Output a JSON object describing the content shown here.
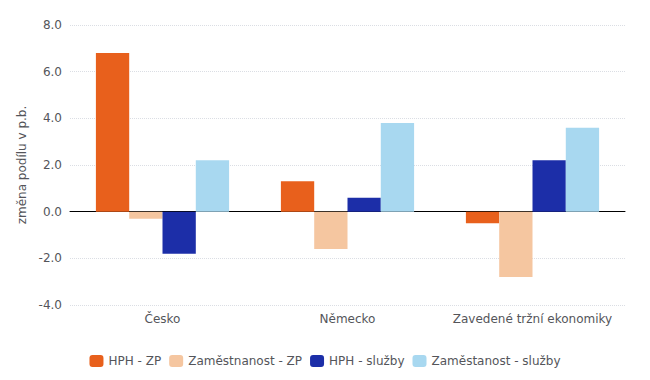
{
  "chart_data": {
    "type": "bar",
    "ylabel": "změna podílu v p.b.",
    "categories": [
      "Česko",
      "Německo",
      "Zavedené tržní ekonomiky"
    ],
    "series": [
      {
        "name": "HPH - ZP",
        "color": "#E8601C",
        "values": [
          6.8,
          1.3,
          -0.5
        ]
      },
      {
        "name": "Zaměstnanost - ZP",
        "color": "#F5C6A0",
        "values": [
          -0.3,
          -1.6,
          -2.8
        ]
      },
      {
        "name": "HPH - služby",
        "color": "#1C2EA8",
        "values": [
          -1.8,
          0.6,
          2.2
        ]
      },
      {
        "name": "Zaměstanost - služby",
        "color": "#A8D8F0",
        "values": [
          2.2,
          3.8,
          3.6
        ]
      }
    ],
    "ylim": [
      -4.0,
      8.0
    ],
    "yticks": [
      {
        "value": -4,
        "label": "-4.0"
      },
      {
        "value": -2,
        "label": "-2.0"
      },
      {
        "value": 0,
        "label": "0.0"
      },
      {
        "value": 2,
        "label": "2.0"
      },
      {
        "value": 4,
        "label": "4.0"
      },
      {
        "value": 6,
        "label": "6.0"
      },
      {
        "value": 8,
        "label": "8.0"
      }
    ],
    "grid": true,
    "legend": "bottom"
  }
}
